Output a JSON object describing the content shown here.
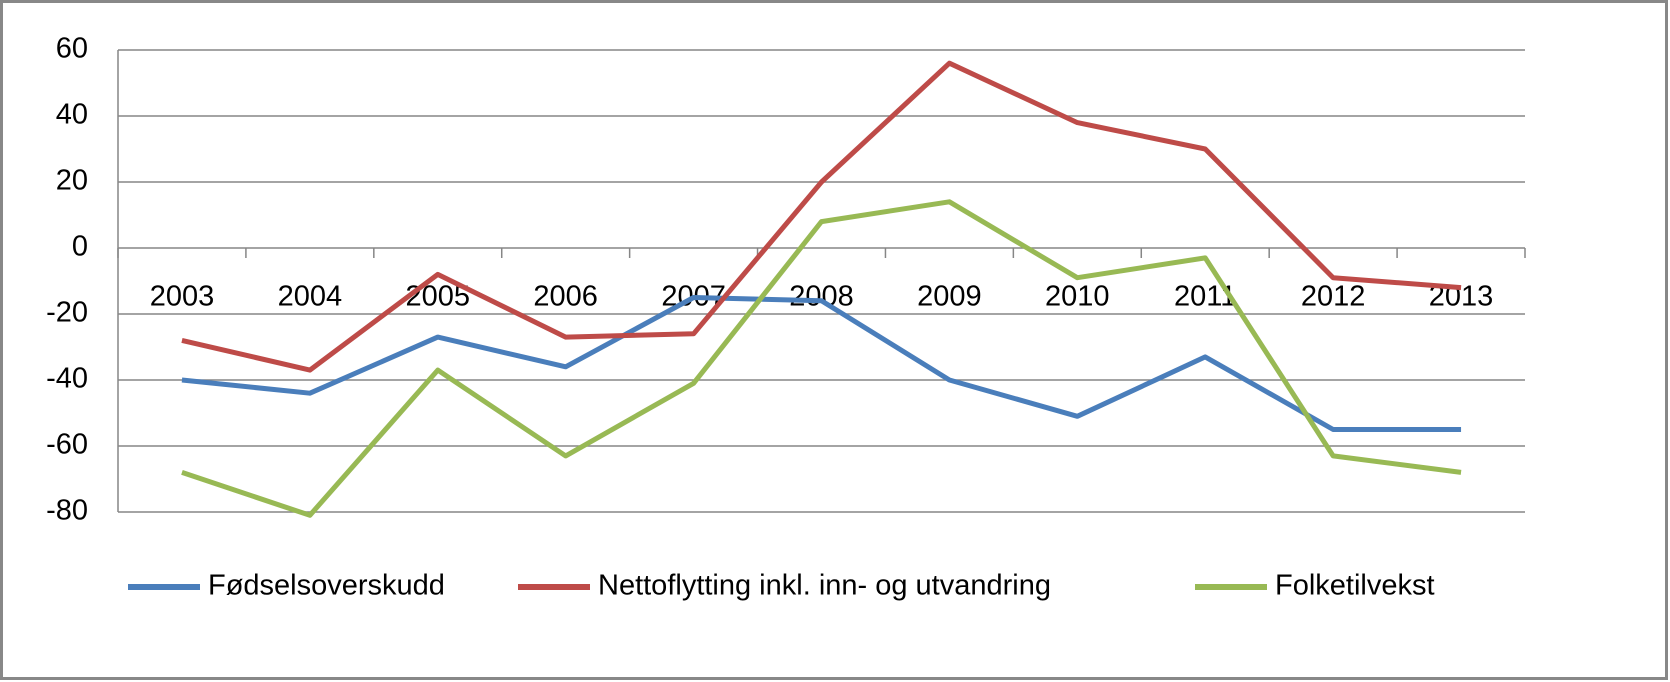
{
  "chart_data": {
    "type": "line",
    "categories": [
      "2003",
      "2004",
      "2005",
      "2006",
      "2007",
      "2008",
      "2009",
      "2010",
      "2011",
      "2012",
      "2013"
    ],
    "series": [
      {
        "name": "Fødselsoverskudd",
        "color": "#4a7ebb",
        "values": [
          -40,
          -44,
          -27,
          -36,
          -15,
          -16,
          -40,
          -51,
          -33,
          -55,
          -55
        ]
      },
      {
        "name": "Nettoflytting inkl. inn- og utvandring",
        "color": "#be4b48",
        "values": [
          -28,
          -37,
          -8,
          -27,
          -26,
          20,
          56,
          38,
          30,
          -9,
          -12
        ]
      },
      {
        "name": "Folketilvekst",
        "color": "#98b954",
        "values": [
          -68,
          -81,
          -37,
          -63,
          -41,
          8,
          14,
          -9,
          -3,
          -63,
          -68
        ]
      }
    ],
    "ylim": [
      -80,
      60
    ],
    "yticks": [
      -80,
      -60,
      -40,
      -20,
      0,
      20,
      40,
      60
    ],
    "grid": true,
    "legend": "bottom"
  }
}
